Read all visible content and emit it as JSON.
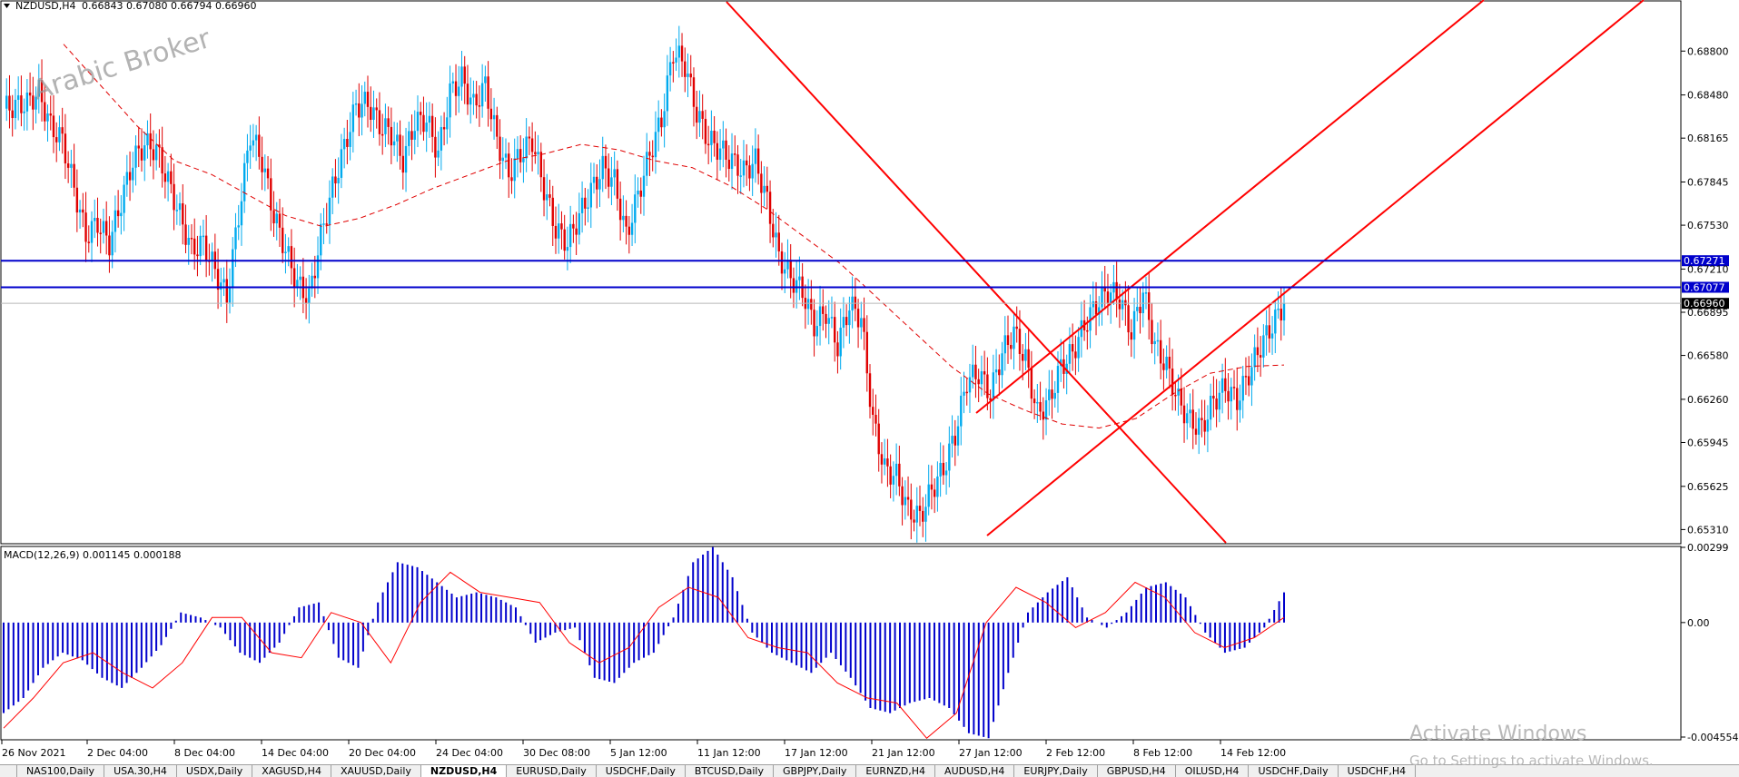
{
  "header": {
    "symbol": "NZDUSD,H4",
    "ohlc": "0.66843 0.67080 0.66794 0.66960"
  },
  "watermark": {
    "brand": "Arabic Broker"
  },
  "macd": {
    "label": "MACD(12,26,9) 0.001145 0.000188"
  },
  "chart_data": [
    {
      "type": "line",
      "title": "NZDUSD,H4",
      "y_ticks": [
        "0.68800",
        "0.68480",
        "0.68165",
        "0.67845",
        "0.67530",
        "0.67210",
        "0.66895",
        "0.66580",
        "0.66260",
        "0.65945",
        "0.65625",
        "0.65310"
      ],
      "x_ticks": [
        "26 Nov 2021",
        "2 Dec 04:00",
        "8 Dec 04:00",
        "14 Dec 04:00",
        "20 Dec 04:00",
        "24 Dec 04:00",
        "30 Dec 08:00",
        "5 Jan 12:00",
        "11 Jan 12:00",
        "17 Jan 12:00",
        "21 Jan 12:00",
        "27 Jan 12:00",
        "2 Feb 12:00",
        "8 Feb 12:00",
        "14 Feb 12:00"
      ],
      "ylim": [
        0.652,
        0.6906
      ],
      "price_path": [
        0.6838,
        0.684,
        0.6842,
        0.685,
        0.6825,
        0.6815,
        0.678,
        0.6745,
        0.6755,
        0.674,
        0.677,
        0.68,
        0.6812,
        0.6808,
        0.6785,
        0.676,
        0.6735,
        0.674,
        0.672,
        0.67,
        0.676,
        0.682,
        0.68,
        0.676,
        0.6735,
        0.671,
        0.67,
        0.6745,
        0.678,
        0.681,
        0.684,
        0.6842,
        0.6826,
        0.682,
        0.68,
        0.6828,
        0.683,
        0.6805,
        0.685,
        0.686,
        0.684,
        0.6855,
        0.6815,
        0.679,
        0.6805,
        0.6815,
        0.678,
        0.675,
        0.674,
        0.676,
        0.6778,
        0.6795,
        0.6785,
        0.6745,
        0.6775,
        0.6805,
        0.683,
        0.688,
        0.687,
        0.6835,
        0.6815,
        0.6808,
        0.68,
        0.6792,
        0.68,
        0.677,
        0.673,
        0.6715,
        0.6705,
        0.668,
        0.669,
        0.6665,
        0.6695,
        0.6685,
        0.661,
        0.6575,
        0.657,
        0.6545,
        0.654,
        0.656,
        0.6575,
        0.66,
        0.664,
        0.6645,
        0.663,
        0.666,
        0.6675,
        0.6655,
        0.6615,
        0.6625,
        0.665,
        0.666,
        0.668,
        0.6695,
        0.6705,
        0.67,
        0.6675,
        0.6705,
        0.6665,
        0.665,
        0.6625,
        0.661,
        0.6605,
        0.6625,
        0.6635,
        0.6625,
        0.6645,
        0.6665,
        0.668,
        0.6696
      ],
      "moving_average": [
        0.6885,
        0.6855,
        0.6825,
        0.68,
        0.679,
        0.6775,
        0.676,
        0.6752,
        0.6758,
        0.6768,
        0.678,
        0.679,
        0.68,
        0.6805,
        0.6812,
        0.6808,
        0.68,
        0.6795,
        0.6782,
        0.6765,
        0.6745,
        0.6725,
        0.67,
        0.6675,
        0.665,
        0.663,
        0.6618,
        0.6608,
        0.6605,
        0.6612,
        0.663,
        0.6645,
        0.665,
        0.6651
      ],
      "levels": [
        {
          "label": "0.67271",
          "value": 0.67271,
          "color": "#0000cc"
        },
        {
          "label": "0.67077",
          "value": 0.67077,
          "color": "#0000cc"
        },
        {
          "label": "0.66960",
          "value": 0.6696,
          "color": "#000000"
        }
      ]
    },
    {
      "type": "bar",
      "title": "MACD(12,26,9) 0.001145 0.000188",
      "y_ticks": [
        "0.00299",
        "0.00",
        "-0.004554"
      ],
      "ylim": [
        -0.004554,
        0.00299
      ],
      "histogram": [
        -0.0036,
        -0.003,
        -0.0018,
        -0.0012,
        -0.0015,
        -0.0022,
        -0.0026,
        -0.0018,
        -0.0009,
        0.0004,
        0.0002,
        -0.0002,
        -0.0012,
        -0.0016,
        -0.0008,
        0.0006,
        0.0008,
        -0.0014,
        -0.0018,
        0.0008,
        0.0024,
        0.0022,
        0.0016,
        0.001,
        0.0012,
        0.001,
        0.0006,
        -0.0008,
        -0.0004,
        -0.0002,
        -0.0022,
        -0.0024,
        -0.0016,
        -0.0012,
        0.0002,
        0.0024,
        0.003,
        0.0018,
        -0.0004,
        -0.0012,
        -0.0016,
        -0.002,
        -0.0012,
        -0.0022,
        -0.0034,
        -0.0036,
        -0.0032,
        -0.003,
        -0.0034,
        -0.0044,
        -0.0046,
        -0.002,
        0.0004,
        0.0012,
        0.0018,
        0.0002,
        -0.0002,
        0.0004,
        0.0014,
        0.0016,
        0.001,
        -0.0004,
        -0.0012,
        -0.001,
        -0.0002,
        0.0012
      ],
      "signal": [
        -0.0042,
        -0.003,
        -0.0016,
        -0.0012,
        -0.002,
        -0.0026,
        -0.0016,
        0.0002,
        0.0002,
        -0.0012,
        -0.0014,
        0.0004,
        0.0,
        -0.0016,
        0.0008,
        0.002,
        0.0012,
        0.001,
        0.0008,
        -0.0008,
        -0.0016,
        -0.001,
        0.0006,
        0.0014,
        0.001,
        -0.0006,
        -0.001,
        -0.0012,
        -0.0024,
        -0.003,
        -0.0032,
        -0.0046,
        -0.0036,
        0.0,
        0.0014,
        0.0008,
        -0.0002,
        0.0004,
        0.0016,
        0.001,
        -0.0004,
        -0.001,
        -0.0006,
        0.0002
      ]
    }
  ],
  "tabs": [
    {
      "label": "NAS100,Daily",
      "active": false
    },
    {
      "label": "USA.30,H4",
      "active": false
    },
    {
      "label": "USDX,Daily",
      "active": false
    },
    {
      "label": "XAGUSD,H4",
      "active": false
    },
    {
      "label": "XAUUSD,Daily",
      "active": false
    },
    {
      "label": "NZDUSD,H4",
      "active": true
    },
    {
      "label": "EURUSD,Daily",
      "active": false
    },
    {
      "label": "USDCHF,Daily",
      "active": false
    },
    {
      "label": "BTCUSD,Daily",
      "active": false
    },
    {
      "label": "GBPJPY,Daily",
      "active": false
    },
    {
      "label": "EURNZD,H4",
      "active": false
    },
    {
      "label": "AUDUSD,H4",
      "active": false
    },
    {
      "label": "EURJPY,Daily",
      "active": false
    },
    {
      "label": "GBPUSD,H4",
      "active": false
    },
    {
      "label": "OILUSD,H4",
      "active": false
    },
    {
      "label": "USDCHF,Daily",
      "active": false
    },
    {
      "label": "USDCHF,H4",
      "active": false
    }
  ],
  "activation": {
    "title": "Activate Windows",
    "subtitle": "Go to Settings to activate Windows."
  },
  "colors": {
    "bull": "#00aaee",
    "bear": "#e00000",
    "levels": "#0000cc",
    "macd_histogram": "#0000cc",
    "signal": "#ff0000",
    "trendline": "#ff0000"
  }
}
